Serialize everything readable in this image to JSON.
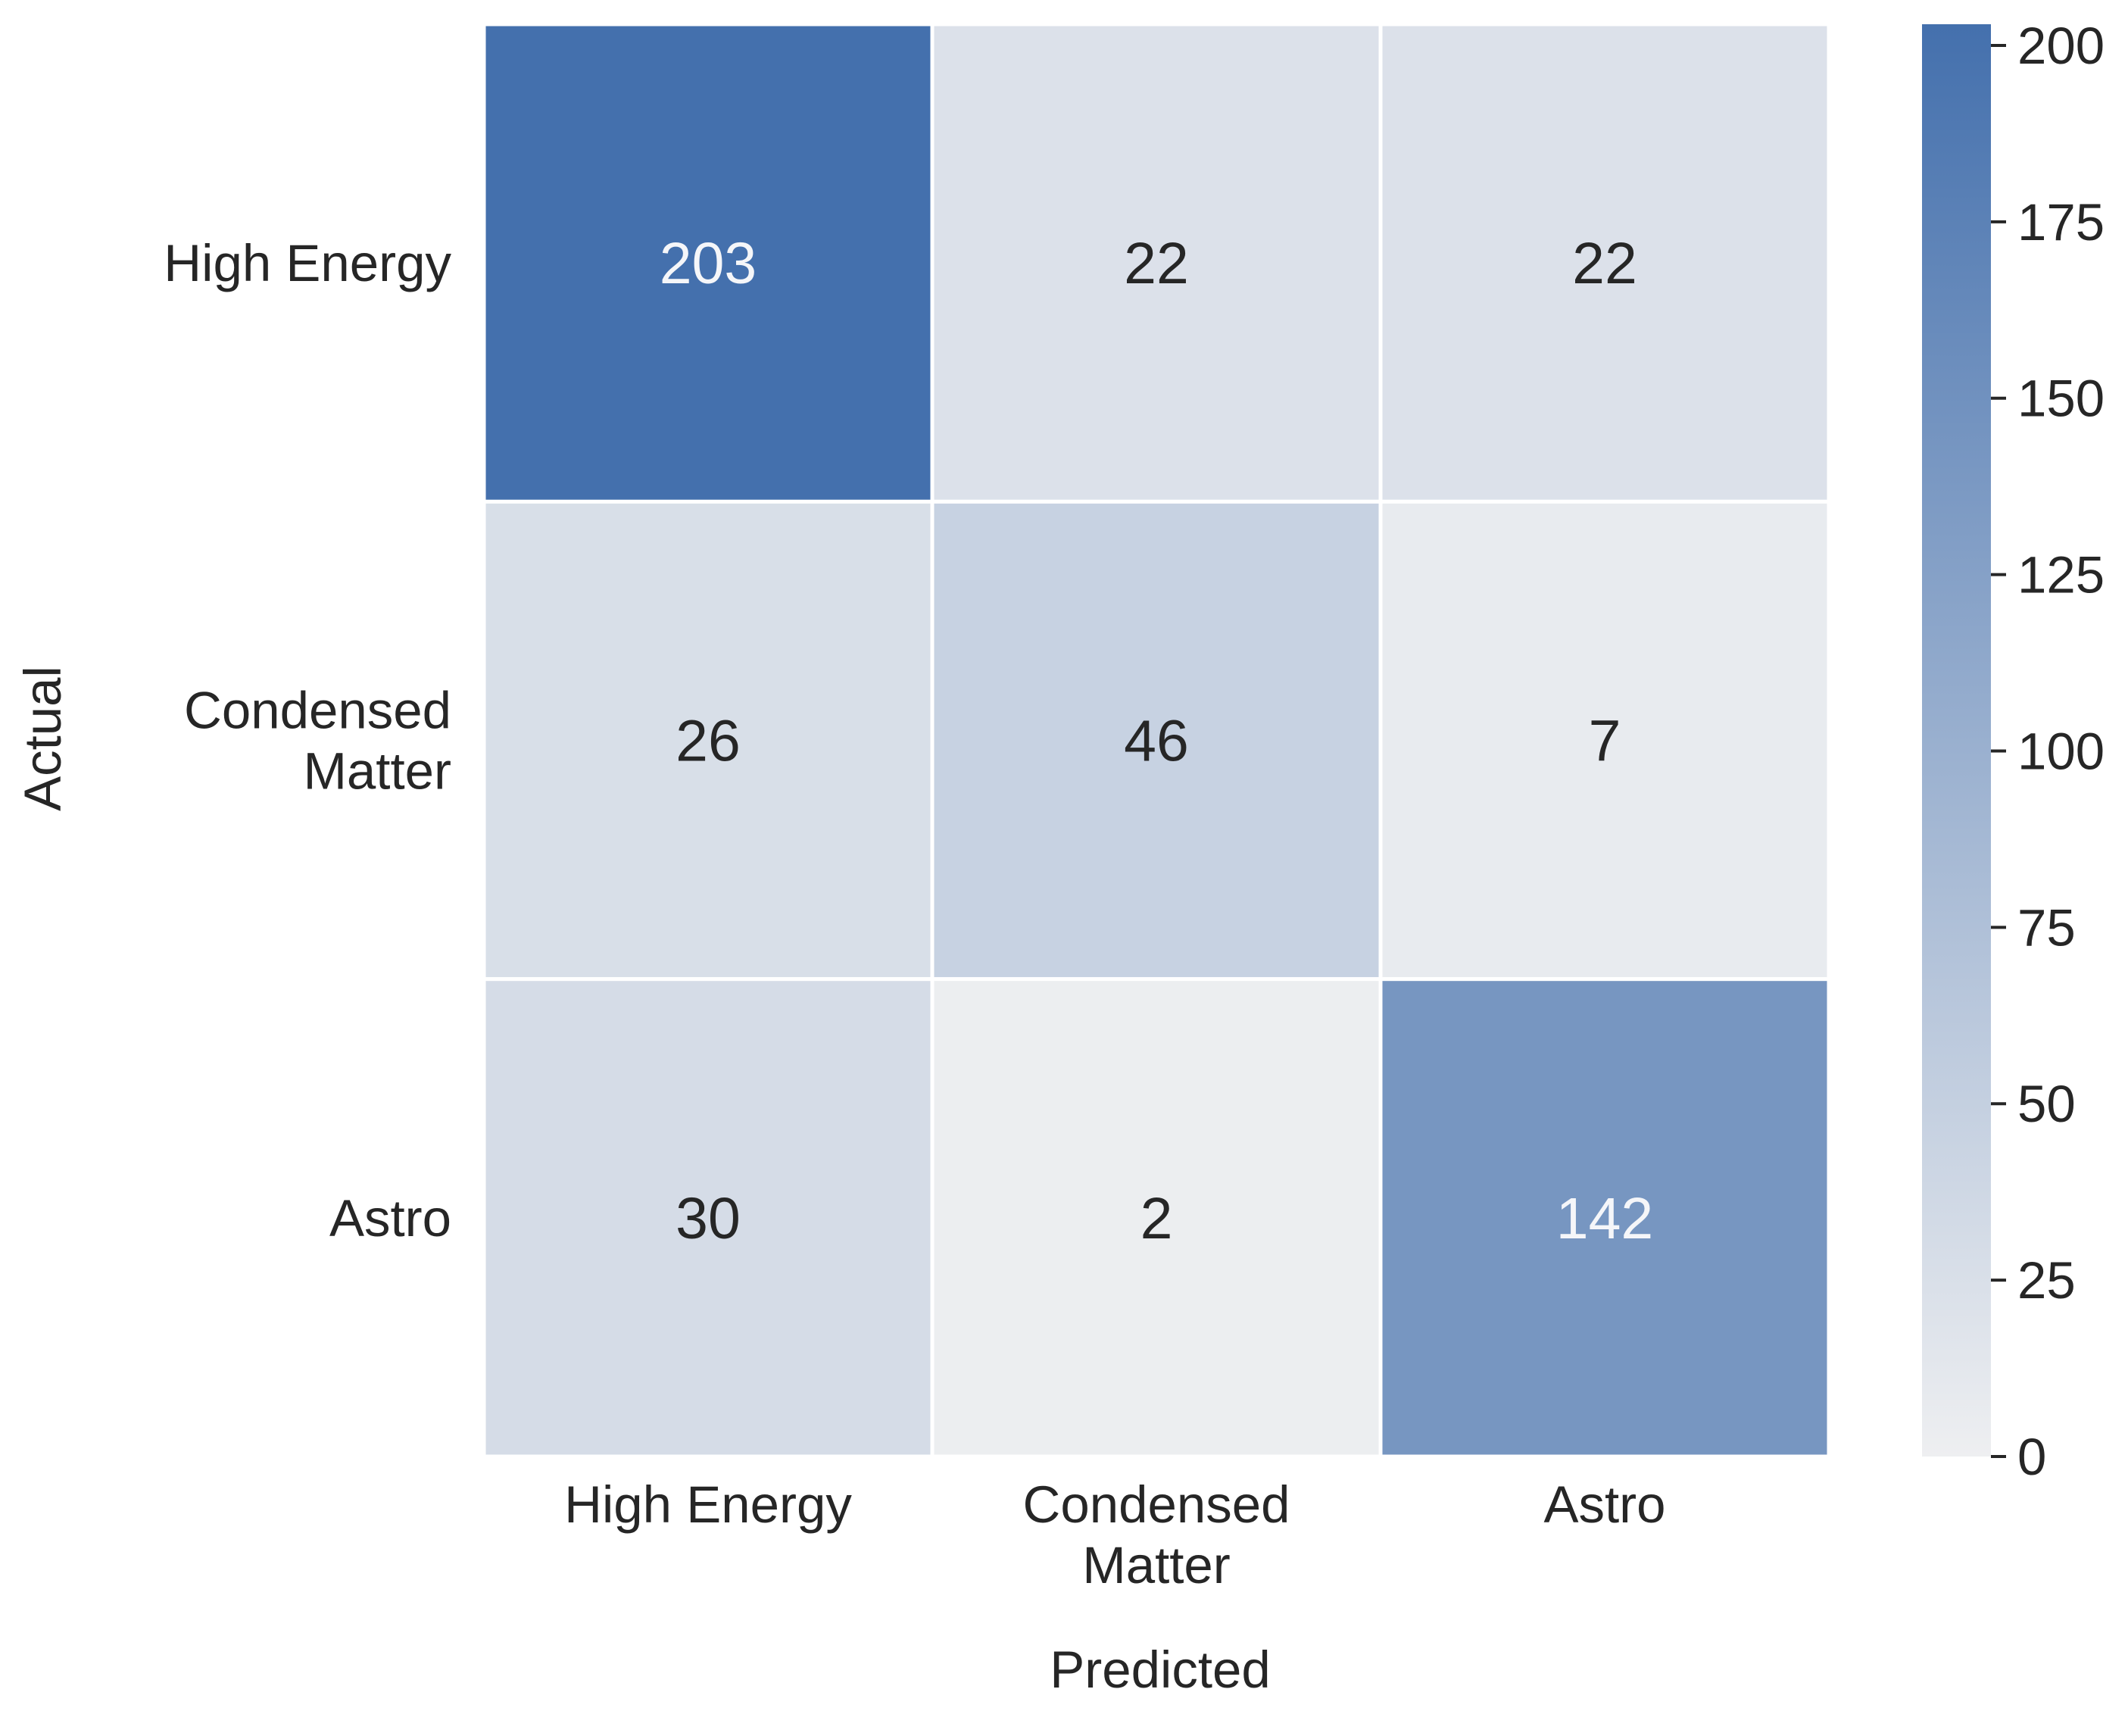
{
  "chart_data": {
    "type": "heatmap",
    "title": "",
    "xlabel": "Predicted",
    "ylabel": "Actual",
    "x_categories": [
      [
        "High Energy"
      ],
      [
        "Condensed",
        "Matter"
      ],
      [
        "Astro"
      ]
    ],
    "y_categories": [
      [
        "High Energy"
      ],
      [
        "Condensed",
        "Matter"
      ],
      [
        "Astro"
      ]
    ],
    "matrix": [
      [
        203,
        22,
        22
      ],
      [
        26,
        46,
        7
      ],
      [
        30,
        2,
        142
      ]
    ],
    "colorbar": {
      "vmin": 0,
      "vmax": 203,
      "ticks": [
        0,
        25,
        50,
        75,
        100,
        125,
        150,
        175,
        200
      ],
      "tick_labels": [
        "0",
        "25",
        "50",
        "75",
        "100",
        "125",
        "150",
        "175",
        "200"
      ]
    },
    "colors": {
      "low": "#eeeff1",
      "high": "#4470ad",
      "text_dark": "#262626",
      "text_light": "#f5f6f9",
      "grid_line": "#ffffff"
    }
  }
}
